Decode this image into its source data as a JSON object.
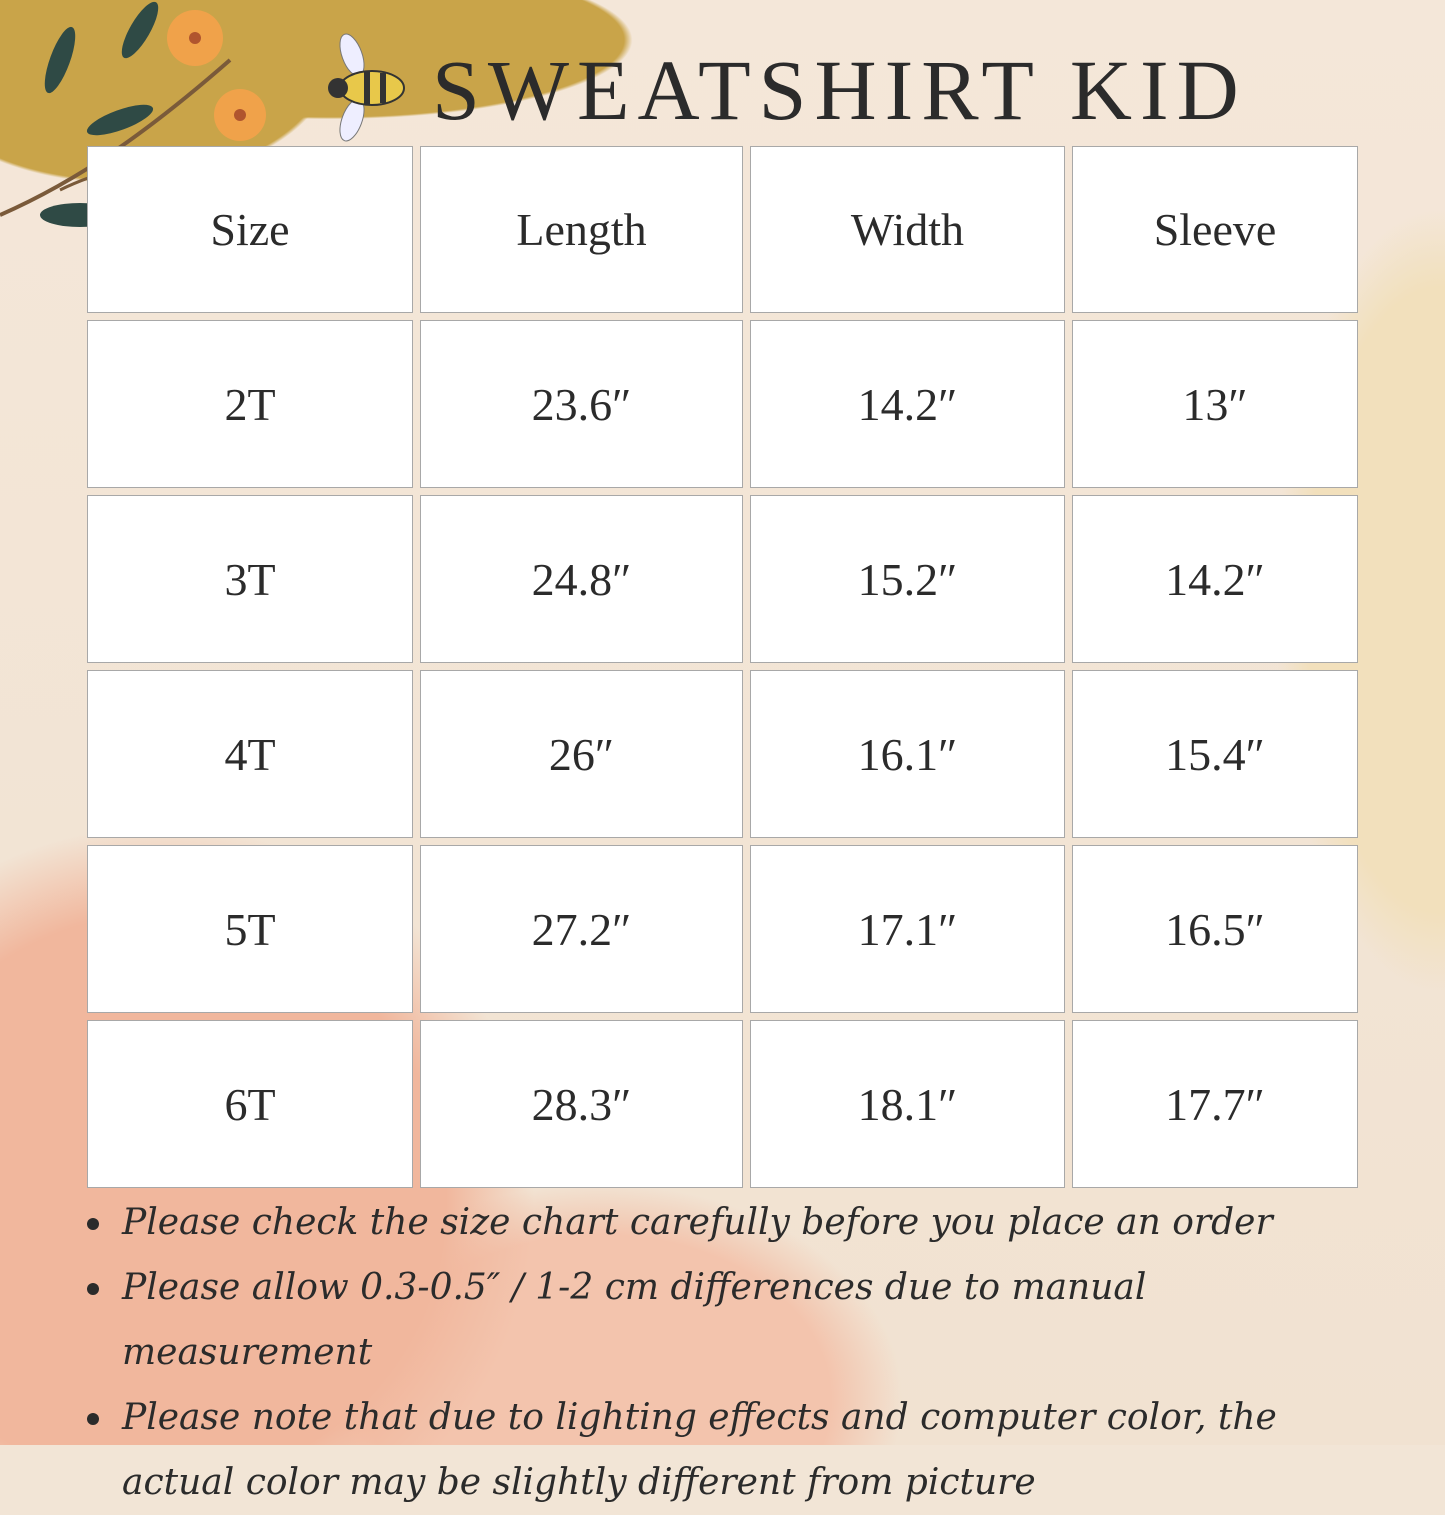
{
  "title": "SWEATSHIRT KID",
  "table": {
    "headers": [
      "Size",
      "Length",
      "Width",
      "Sleeve"
    ],
    "rows": [
      [
        "2T",
        "23.6″",
        "14.2″",
        "13″"
      ],
      [
        "3T",
        "24.8″",
        "15.2″",
        "14.2″"
      ],
      [
        "4T",
        "26″",
        "16.1″",
        "15.4″"
      ],
      [
        "5T",
        "27.2″",
        "17.1″",
        "16.5″"
      ],
      [
        "6T",
        "28.3″",
        "18.1″",
        "17.7″"
      ]
    ]
  },
  "notes": [
    "Please check the size chart carefully before you place an order",
    "Please allow 0.3-0.5″ / 1-2 cm differences due to manual measurement",
    "Please note that due to lighting effects and computer color, the actual color may be slightly different from picture"
  ],
  "colors": {
    "mustard": "#c9a449",
    "peach": "#f1b79d",
    "background": "#f2e5d6",
    "text": "#2b2b2b"
  },
  "icons": [
    "flower-branch-icon",
    "bee-icon"
  ]
}
